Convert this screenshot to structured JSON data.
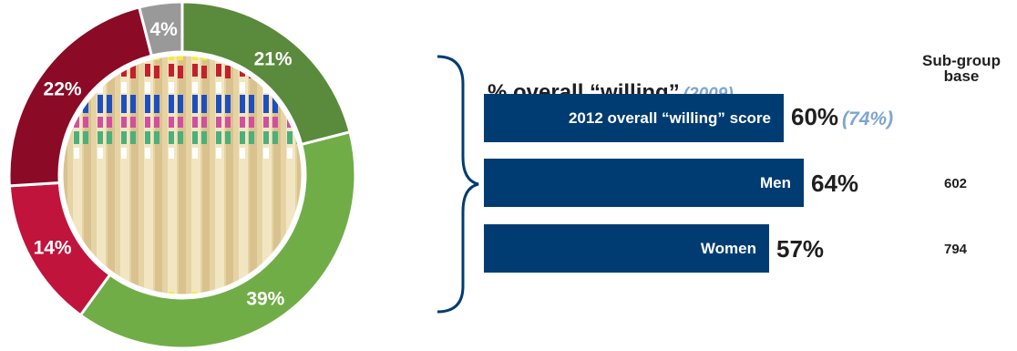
{
  "chart_data": [
    {
      "type": "donut",
      "title": "",
      "segments": [
        {
          "label": "21%",
          "value": 21,
          "color": "#5a8a3c"
        },
        {
          "label": "39%",
          "value": 39,
          "color": "#70ad47"
        },
        {
          "label": "14%",
          "value": 14,
          "color": "#c0143c"
        },
        {
          "label": "22%",
          "value": 22,
          "color": "#8b0a26"
        },
        {
          "label": "4%",
          "value": 4,
          "color": "#999999"
        }
      ]
    },
    {
      "type": "bar",
      "title": "% overall “willing”",
      "title_year": "(2009)",
      "column_header": "Sub-group base",
      "bar_color": "#003c71",
      "xlim": [
        0,
        100
      ],
      "rows": [
        {
          "label": "2012 overall “willing” score",
          "value": 60,
          "value_label": "60%",
          "comparison_label": "(74%)",
          "base": ""
        },
        {
          "label": "Men",
          "value": 64,
          "value_label": "64%",
          "comparison_label": "",
          "base": "602"
        },
        {
          "label": "Women",
          "value": 57,
          "value_label": "57%",
          "comparison_label": "",
          "base": "794"
        }
      ]
    }
  ]
}
